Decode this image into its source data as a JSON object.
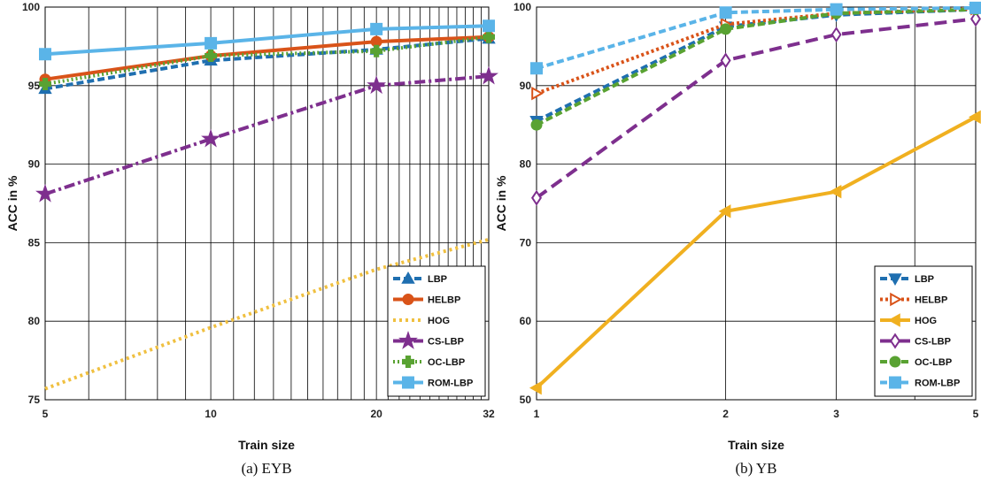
{
  "chart_data": [
    {
      "type": "line",
      "caption": "(a) EYB",
      "xlabel": "Train size",
      "ylabel": "ACC in %",
      "x": [
        5,
        10,
        20,
        32
      ],
      "xticks": [
        "5",
        "10",
        "20",
        "32"
      ],
      "xscale": "log",
      "xlim": [
        5,
        32
      ],
      "ylim": [
        75,
        100
      ],
      "yticks": [
        "75",
        "80",
        "85",
        "90",
        "95",
        "100"
      ],
      "grid": true,
      "legend_position": "bottom-right",
      "series": [
        {
          "name": "LBP",
          "values": [
            94.8,
            96.6,
            97.3,
            98.0
          ],
          "color": "#1f6fb0",
          "dash": "8,4",
          "marker": "triangle-up"
        },
        {
          "name": "HELBP",
          "values": [
            95.4,
            96.9,
            97.8,
            98.1
          ],
          "color": "#d95319",
          "dash": "",
          "marker": "circle"
        },
        {
          "name": "HOG",
          "values": [
            75.7,
            79.6,
            83.3,
            85.2
          ],
          "color": "#f0c040",
          "dash": "3,4",
          "marker": "none"
        },
        {
          "name": "CS-LBP",
          "values": [
            88.1,
            91.6,
            95.0,
            95.6
          ],
          "color": "#7e2f8e",
          "dash": "12,4,3,4",
          "marker": "star"
        },
        {
          "name": "OC-LBP",
          "values": [
            95.1,
            96.9,
            97.2,
            98.1
          ],
          "color": "#59a232",
          "dash": "2,3",
          "marker": "plus"
        },
        {
          "name": "ROM-LBP",
          "values": [
            97.0,
            97.7,
            98.6,
            98.8
          ],
          "color": "#5ab4e8",
          "dash": "",
          "marker": "square"
        }
      ]
    },
    {
      "type": "line",
      "caption": "(b) YB",
      "xlabel": "Train size",
      "ylabel": "ACC in %",
      "x": [
        1,
        2,
        3,
        5
      ],
      "xticks": [
        "1",
        "2",
        "3",
        "5"
      ],
      "xscale": "log",
      "xlim": [
        1,
        5
      ],
      "ylim": [
        50,
        100
      ],
      "yticks": [
        "50",
        "60",
        "70",
        "80",
        "90",
        "100"
      ],
      "grid": true,
      "legend_position": "bottom-right",
      "series": [
        {
          "name": "LBP",
          "values": [
            85.5,
            97.5,
            99.0,
            99.7
          ],
          "color": "#1f6fb0",
          "dash": "8,4",
          "marker": "triangle-down"
        },
        {
          "name": "HELBP",
          "values": [
            89.0,
            97.8,
            99.2,
            99.8
          ],
          "color": "#d95319",
          "dash": "3,3",
          "marker": "triangle-right"
        },
        {
          "name": "HOG",
          "values": [
            51.5,
            74.0,
            76.5,
            86.0
          ],
          "color": "#f0b020",
          "dash": "",
          "marker": "triangle-left"
        },
        {
          "name": "CS-LBP",
          "values": [
            75.7,
            93.2,
            96.5,
            98.5
          ],
          "color": "#7e2f8e",
          "dash": "14,7",
          "marker": "diamond"
        },
        {
          "name": "OC-LBP",
          "values": [
            85.0,
            97.2,
            99.2,
            99.7
          ],
          "color": "#59a232",
          "dash": "8,4",
          "marker": "circle"
        },
        {
          "name": "ROM-LBP",
          "values": [
            92.2,
            99.3,
            99.7,
            99.9
          ],
          "color": "#5ab4e8",
          "dash": "8,4",
          "marker": "square"
        }
      ]
    }
  ]
}
